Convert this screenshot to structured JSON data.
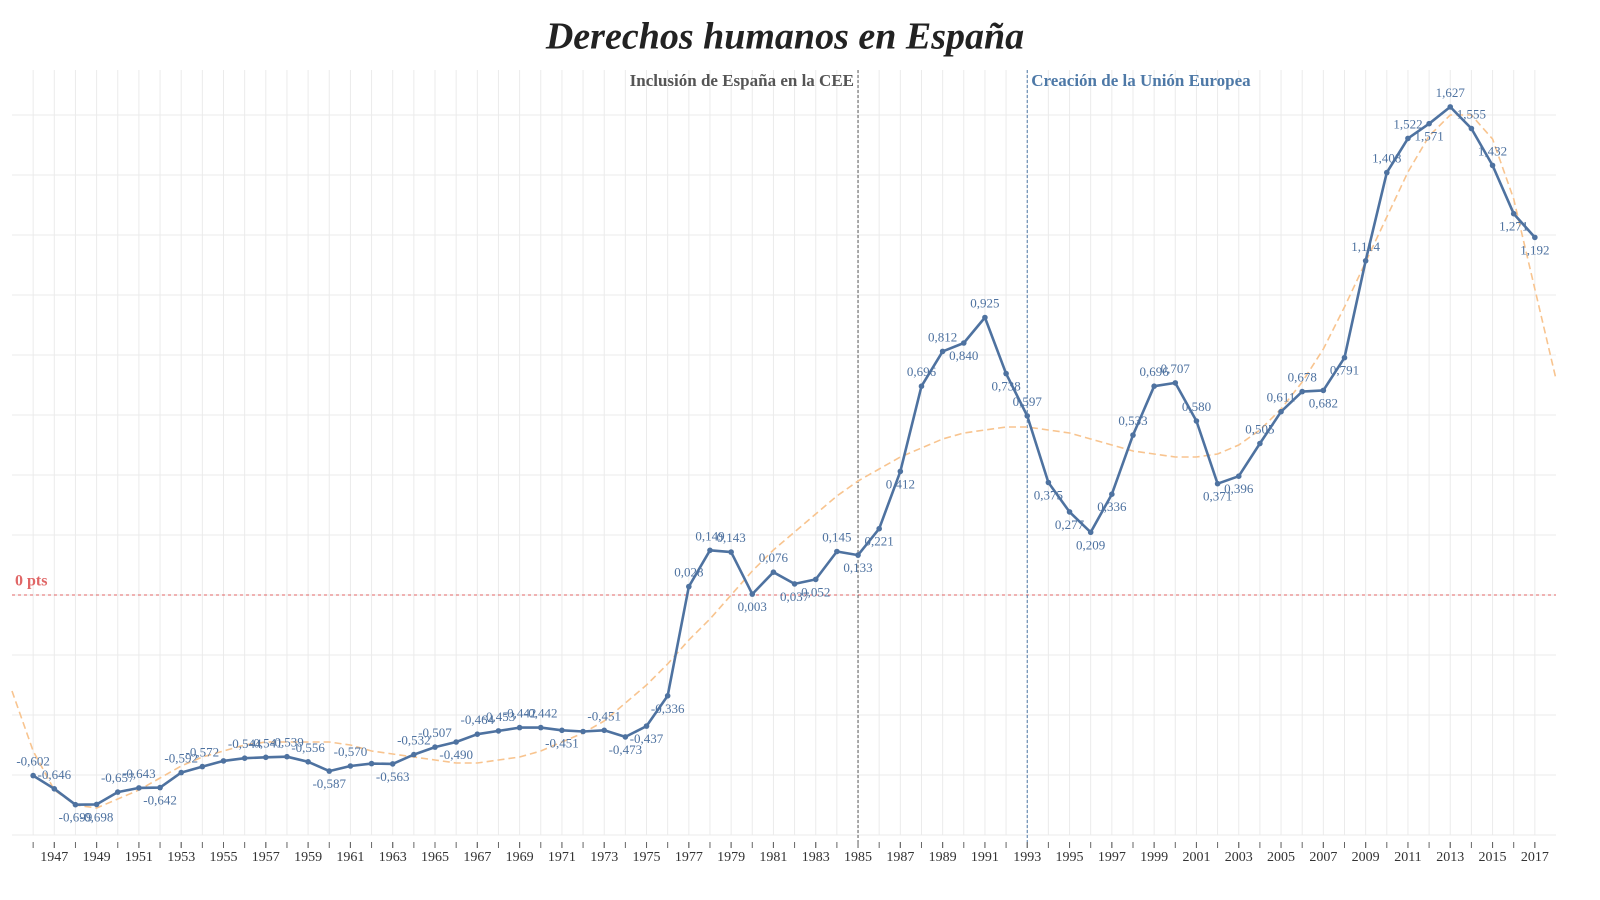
{
  "chart_data": {
    "type": "line",
    "title": "Derechos humanos en España",
    "x": [
      1946,
      1947,
      1948,
      1949,
      1950,
      1951,
      1952,
      1953,
      1954,
      1955,
      1956,
      1957,
      1958,
      1959,
      1960,
      1961,
      1962,
      1963,
      1964,
      1965,
      1966,
      1967,
      1968,
      1969,
      1970,
      1971,
      1972,
      1973,
      1974,
      1975,
      1976,
      1977,
      1978,
      1979,
      1980,
      1981,
      1982,
      1983,
      1984,
      1985,
      1986,
      1987,
      1988,
      1989,
      1990,
      1991,
      1992,
      1993,
      1994,
      1995,
      1996,
      1997,
      1998,
      1999,
      2000,
      2001,
      2002,
      2003,
      2004,
      2005,
      2006,
      2007,
      2008,
      2009,
      2010,
      2011,
      2012,
      2013,
      2014,
      2015,
      2016,
      2017
    ],
    "series": [
      {
        "color": "#4e72a0",
        "values": [
          -0.602,
          -0.646,
          -0.699,
          -0.698,
          -0.657,
          -0.643,
          -0.642,
          -0.592,
          -0.572,
          -0.553,
          -0.544,
          -0.541,
          -0.539,
          -0.556,
          -0.587,
          -0.57,
          -0.562,
          -0.563,
          -0.532,
          -0.507,
          -0.49,
          -0.464,
          -0.453,
          -0.442,
          -0.442,
          -0.451,
          -0.455,
          -0.451,
          -0.473,
          -0.437,
          -0.336,
          0.028,
          0.149,
          0.143,
          0.003,
          0.076,
          0.037,
          0.052,
          0.145,
          0.133,
          0.221,
          0.412,
          0.696,
          0.812,
          0.84,
          0.925,
          0.738,
          0.597,
          0.375,
          0.277,
          0.209,
          0.336,
          0.533,
          0.696,
          0.707,
          0.58,
          0.371,
          0.396,
          0.505,
          0.611,
          0.678,
          0.682,
          0.791,
          1.114,
          1.408,
          1.522,
          1.571,
          1.627,
          1.555,
          1.432,
          1.271,
          1.192
        ],
        "value_labels": [
          "-0,602",
          "-0,646",
          "-0,699",
          "-0,698",
          "-0,657",
          "-0,643",
          "-0,642",
          "-0,592",
          "-0,572",
          null,
          "-0,544",
          "-0,541",
          "-0,539",
          "-0,556",
          "-0,587",
          "-0,570",
          null,
          "-0,563",
          "-0,532",
          "-0,507",
          "-0,490",
          "-0,464",
          "-0,453",
          "-0,442",
          "-0,442",
          "-0,451",
          null,
          "-0,451",
          "-0,473",
          "-0,437",
          "-0,336",
          "0,028",
          "0,149",
          "0,143",
          "0,003",
          "0,076",
          "0,037",
          "0,052",
          "0,145",
          "0,133",
          "0,221",
          "0,412",
          "0,696",
          "0,812",
          "0,840",
          "0,925",
          "0,738",
          "0,597",
          "0,375",
          "0,277",
          "0,209",
          "0,336",
          "0,533",
          "0,696",
          "0,707",
          "0,580",
          "0,371",
          "0,396",
          "0,505",
          "0,611",
          "0,678",
          "0,682",
          "0,791",
          "1,114",
          "1,408",
          "1,522",
          "1,571",
          "1,627",
          "1,555",
          "1,432",
          "1,271",
          "1,192"
        ]
      }
    ],
    "trendline": {
      "color": "#f8c48f",
      "x": [
        1945,
        1946,
        1947,
        1948,
        1949,
        1950,
        1951,
        1952,
        1953,
        1954,
        1955,
        1956,
        1957,
        1958,
        1959,
        1960,
        1961,
        1962,
        1963,
        1964,
        1965,
        1966,
        1967,
        1968,
        1969,
        1970,
        1971,
        1972,
        1973,
        1974,
        1975,
        1976,
        1977,
        1978,
        1979,
        1980,
        1981,
        1982,
        1983,
        1984,
        1985,
        1986,
        1987,
        1988,
        1989,
        1990,
        1991,
        1992,
        1993,
        1994,
        1995,
        1996,
        1997,
        1998,
        1999,
        2000,
        2001,
        2002,
        2003,
        2004,
        2005,
        2006,
        2007,
        2008,
        2009,
        2010,
        2011,
        2012,
        2013,
        2014,
        2015,
        2016,
        2017,
        2018
      ],
      "values": [
        -0.32,
        -0.52,
        -0.65,
        -0.7,
        -0.71,
        -0.68,
        -0.65,
        -0.61,
        -0.57,
        -0.54,
        -0.52,
        -0.5,
        -0.49,
        -0.49,
        -0.49,
        -0.49,
        -0.5,
        -0.52,
        -0.53,
        -0.54,
        -0.55,
        -0.56,
        -0.56,
        -0.55,
        -0.54,
        -0.52,
        -0.49,
        -0.46,
        -0.42,
        -0.36,
        -0.3,
        -0.23,
        -0.15,
        -0.08,
        0,
        0.08,
        0.15,
        0.21,
        0.27,
        0.33,
        0.38,
        0.42,
        0.46,
        0.49,
        0.52,
        0.54,
        0.55,
        0.56,
        0.56,
        0.55,
        0.54,
        0.52,
        0.5,
        0.48,
        0.47,
        0.46,
        0.46,
        0.47,
        0.5,
        0.55,
        0.62,
        0.71,
        0.82,
        0.96,
        1.11,
        1.26,
        1.41,
        1.53,
        1.6,
        1.6,
        1.52,
        1.32,
        1.02,
        0.72
      ]
    },
    "xlim": [
      1945,
      2018
    ],
    "xticks": [
      1947,
      1949,
      1951,
      1953,
      1955,
      1957,
      1959,
      1961,
      1963,
      1965,
      1967,
      1969,
      1971,
      1973,
      1975,
      1977,
      1979,
      1981,
      1983,
      1985,
      1987,
      1989,
      1991,
      1993,
      1995,
      1997,
      1999,
      2001,
      2003,
      2005,
      2007,
      2009,
      2011,
      2013,
      2015,
      2017
    ],
    "ylim": [
      -0.8,
      1.75
    ],
    "ygrid": [
      -0.8,
      -0.6,
      -0.4,
      -0.2,
      0,
      0.2,
      0.4,
      0.6,
      0.8,
      1.0,
      1.2,
      1.4,
      1.6
    ],
    "grid": true,
    "reference_lines": [
      {
        "axis": "y",
        "value": 0,
        "label": "0 pts",
        "color": "#e06666"
      },
      {
        "axis": "x",
        "value": 1985,
        "label": "Inclusión de España en la CEE",
        "color": "#555555"
      },
      {
        "axis": "x",
        "value": 1993,
        "label": "Creación de la Unión Europea",
        "color": "#4e79a7"
      }
    ]
  }
}
